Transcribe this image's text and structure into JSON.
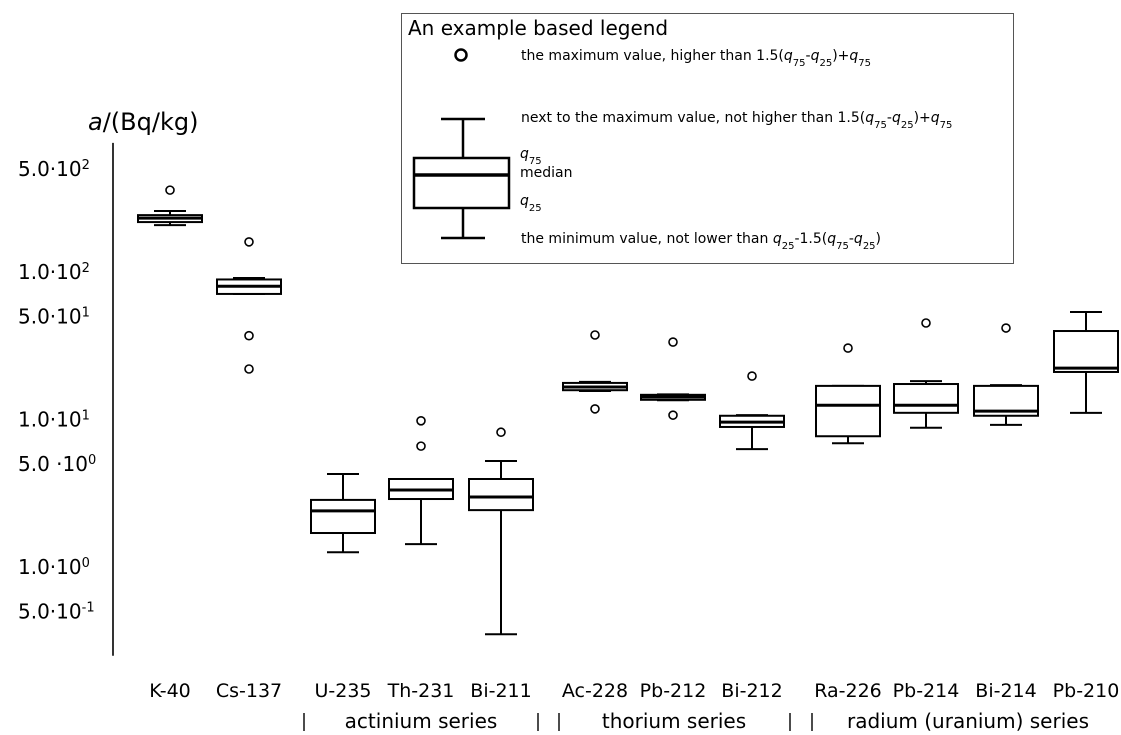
{
  "chart_data": {
    "type": "boxplot",
    "yscale": "log",
    "ylim": [
      0.25,
      750
    ],
    "grid": false,
    "ylabel": {
      "var": "a",
      "unit": "/(Bq/kg)"
    },
    "y_ticks": [
      {
        "value": 500,
        "mantissa": "5.0·10",
        "exp": "2"
      },
      {
        "value": 100,
        "mantissa": "1.0·10",
        "exp": "2"
      },
      {
        "value": 50,
        "mantissa": "5.0·10",
        "exp": "1"
      },
      {
        "value": 10,
        "mantissa": "1.0·10",
        "exp": "1"
      },
      {
        "value": 5,
        "mantissa": "5.0 ·10",
        "exp": "0"
      },
      {
        "value": 1,
        "mantissa": "1.0·10",
        "exp": "0"
      },
      {
        "value": 0.5,
        "mantissa": "5.0·10",
        "exp": "-1"
      }
    ],
    "categories": [
      "K-40",
      "Cs-137",
      "U-235",
      "Th-231",
      "Bi-211",
      "Ac-228",
      "Pb-212",
      "Bi-212",
      "Ra-226",
      "Pb-214",
      "Bi-214",
      "Pb-210"
    ],
    "boxes": [
      {
        "whislo": 208,
        "q1": 218,
        "med": 232,
        "q3": 243,
        "whishi": 259,
        "fliers": [
          359
        ]
      },
      {
        "whislo": 71,
        "q1": 71,
        "med": 80,
        "q3": 89,
        "whishi": 91,
        "fliers": [
          160,
          37,
          22
        ]
      },
      {
        "whislo": 1.26,
        "q1": 1.7,
        "med": 2.4,
        "q3": 2.85,
        "whishi": 4.27,
        "fliers": []
      },
      {
        "whislo": 1.43,
        "q1": 2.89,
        "med": 3.33,
        "q3": 3.95,
        "whishi": 3.95,
        "fliers": [
          9.8,
          6.6
        ]
      },
      {
        "whislo": 0.35,
        "q1": 2.43,
        "med": 2.98,
        "q3": 3.95,
        "whishi": 5.23,
        "fliers": [
          8.2
        ]
      },
      {
        "whislo": 15.6,
        "q1": 15.8,
        "med": 16.6,
        "q3": 17.7,
        "whishi": 18.0,
        "fliers": [
          37.4,
          11.8
        ]
      },
      {
        "whislo": 13.5,
        "q1": 13.6,
        "med": 14.2,
        "q3": 14.7,
        "whishi": 14.8,
        "fliers": [
          33.5,
          10.7
        ]
      },
      {
        "whislo": 6.3,
        "q1": 8.9,
        "med": 9.6,
        "q3": 10.6,
        "whishi": 10.7,
        "fliers": [
          19.7
        ]
      },
      {
        "whislo": 6.9,
        "q1": 7.7,
        "med": 12.5,
        "q3": 16.9,
        "whishi": 16.9,
        "fliers": [
          30.5
        ]
      },
      {
        "whislo": 8.8,
        "q1": 11.1,
        "med": 12.5,
        "q3": 17.4,
        "whishi": 18.2,
        "fliers": [
          45.1
        ]
      },
      {
        "whislo": 9.2,
        "q1": 10.6,
        "med": 11.4,
        "q3": 16.9,
        "whishi": 17.1,
        "fliers": [
          41.7
        ]
      },
      {
        "whislo": 11.1,
        "q1": 21.0,
        "med": 22.3,
        "q3": 39.8,
        "whishi": 53.6,
        "fliers": []
      }
    ],
    "groups": [
      {
        "label": "actinium series",
        "first": 2,
        "last": 4
      },
      {
        "label": "thorium series",
        "first": 5,
        "last": 7
      },
      {
        "label": "radium (uranium) series",
        "first": 8,
        "last": 11
      }
    ],
    "legend": {
      "title": "An example based legend",
      "items": [
        {
          "segments": [
            {
              "t": "the maximum value, higher than 1.5("
            },
            {
              "t": "q",
              "italic": true
            },
            {
              "t": "75",
              "sub": true
            },
            {
              "t": "-"
            },
            {
              "t": "q",
              "italic": true
            },
            {
              "t": "25",
              "sub": true
            },
            {
              "t": ")+"
            },
            {
              "t": "q",
              "italic": true
            },
            {
              "t": "75",
              "sub": true
            }
          ]
        },
        {
          "segments": [
            {
              "t": "next to the maximum value, not higher than 1.5("
            },
            {
              "t": "q",
              "italic": true
            },
            {
              "t": "75",
              "sub": true
            },
            {
              "t": "-"
            },
            {
              "t": "q",
              "italic": true
            },
            {
              "t": "25",
              "sub": true
            },
            {
              "t": ")+"
            },
            {
              "t": "q",
              "italic": true
            },
            {
              "t": "75",
              "sub": true
            }
          ]
        },
        {
          "segments": [
            {
              "t": "q",
              "italic": true
            },
            {
              "t": "75",
              "sub": true
            }
          ]
        },
        {
          "segments": [
            {
              "t": "median"
            }
          ]
        },
        {
          "segments": [
            {
              "t": "q",
              "italic": true
            },
            {
              "t": "25",
              "sub": true
            }
          ]
        },
        {
          "segments": [
            {
              "t": "the minimum value, not lower than "
            },
            {
              "t": "q",
              "italic": true
            },
            {
              "t": "25",
              "sub": true
            },
            {
              "t": "-1.5("
            },
            {
              "t": "q",
              "italic": true
            },
            {
              "t": "75",
              "sub": true
            },
            {
              "t": "-"
            },
            {
              "t": "q",
              "italic": true
            },
            {
              "t": "25",
              "sub": true
            },
            {
              "t": ")"
            }
          ]
        }
      ]
    }
  }
}
